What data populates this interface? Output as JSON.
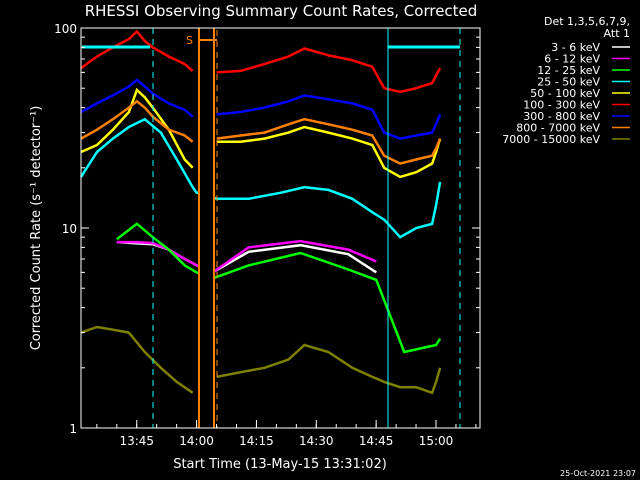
{
  "chart_data": {
    "type": "line",
    "title": "RHESSI Observing Summary Count Rates, Corrected",
    "xlabel": "Start Time (13-May-15 13:31:02)",
    "ylabel": "Corrected Count Rate (s⁻¹ detector⁻¹)",
    "yscale": "log",
    "ylim": [
      1,
      100
    ],
    "xlim_minutes": [
      0,
      100
    ],
    "x_ticks": [
      "13:45",
      "14:00",
      "14:15",
      "14:30",
      "14:45",
      "15:00"
    ],
    "x_tick_minutes": [
      13.97,
      28.97,
      43.97,
      58.97,
      73.97,
      88.97
    ],
    "y_tick_labels": [
      "1",
      "10",
      "100"
    ],
    "y_tick_values": [
      1,
      10,
      100
    ],
    "grid": false,
    "legend_header": [
      "Det 1,3,5,6,7,9,",
      "Att 1"
    ],
    "legend_position": "top-right",
    "series": [
      {
        "name": "3 - 6 keV",
        "color": "#ffffff",
        "x": [
          9,
          18,
          22,
          26,
          29,
          33,
          42,
          55,
          67,
          74,
          81,
          89,
          90
        ],
        "values": [
          8.5,
          8.3,
          7.8,
          7.0,
          6.5,
          6.0,
          7.6,
          8.2,
          7.4,
          6.0,
          null,
          null,
          null
        ]
      },
      {
        "name": "6 - 12 keV",
        "color": "#ff00ff",
        "x": [
          9,
          14,
          18,
          22,
          26,
          29,
          33,
          42,
          55,
          67,
          74,
          81,
          89,
          90
        ],
        "values": [
          8.5,
          8.5,
          8.4,
          7.8,
          7.0,
          6.5,
          6.0,
          8.0,
          8.6,
          7.8,
          6.8,
          null,
          null,
          null
        ]
      },
      {
        "name": "12 - 25 keV",
        "color": "#00ff00",
        "x": [
          9,
          14,
          18,
          22,
          26,
          29,
          33,
          42,
          55,
          67,
          74,
          81,
          89,
          90
        ],
        "values": [
          8.8,
          10.5,
          9.0,
          7.8,
          6.5,
          6.0,
          5.6,
          6.5,
          7.5,
          6.2,
          5.5,
          2.4,
          2.6,
          2.8
        ]
      },
      {
        "name": "25 - 50 keV",
        "color": "#00ffff",
        "x": [
          0,
          4,
          8,
          12,
          16,
          20,
          24,
          28,
          29,
          30,
          34,
          42,
          50,
          56,
          62,
          68,
          73,
          76,
          80,
          84,
          88,
          89,
          90
        ],
        "values": [
          18,
          24,
          28,
          32,
          35,
          30,
          22,
          16,
          15,
          15,
          14,
          14,
          15,
          16,
          15.5,
          14,
          12,
          11,
          9,
          10,
          10.5,
          13,
          17
        ]
      },
      {
        "name": "50 - 100 keV",
        "color": "#ffff00",
        "x": [
          0,
          4,
          8,
          12,
          14,
          16,
          18,
          22,
          26,
          28,
          29,
          30,
          34,
          40,
          46,
          52,
          56,
          62,
          68,
          73,
          76,
          80,
          84,
          88,
          89,
          90
        ],
        "values": [
          24,
          26,
          31,
          38,
          49,
          45,
          40,
          31,
          22,
          20,
          null,
          null,
          27,
          27,
          28,
          30,
          32,
          30,
          28,
          26,
          20,
          18,
          19,
          21,
          24,
          28
        ]
      },
      {
        "name": "100 - 300 keV",
        "color": "#ff0000",
        "x": [
          0,
          4,
          8,
          12,
          14,
          16,
          18,
          22,
          26,
          28,
          29,
          30,
          34,
          40,
          46,
          52,
          56,
          62,
          68,
          73,
          76,
          80,
          84,
          88,
          89,
          90
        ],
        "values": [
          63,
          72,
          80,
          88,
          96,
          86,
          80,
          72,
          66,
          61,
          null,
          null,
          60,
          61,
          66,
          72,
          79,
          73,
          69,
          64,
          50,
          48,
          50,
          53,
          58,
          63
        ]
      },
      {
        "name": "300 - 800 keV",
        "color": "#0000ff",
        "x": [
          0,
          4,
          8,
          12,
          14,
          16,
          18,
          22,
          26,
          28,
          29,
          30,
          34,
          40,
          46,
          52,
          56,
          62,
          68,
          73,
          76,
          80,
          84,
          88,
          89,
          90
        ],
        "values": [
          38,
          42,
          46,
          51,
          55,
          51,
          47,
          42,
          39,
          36,
          null,
          null,
          37,
          38,
          40,
          43,
          46,
          44,
          42,
          39,
          30,
          28,
          29,
          30,
          33,
          37
        ]
      },
      {
        "name": "800 - 7000 keV",
        "color": "#ff8000",
        "x": [
          0,
          4,
          8,
          12,
          14,
          16,
          18,
          22,
          26,
          28,
          29,
          30,
          34,
          40,
          46,
          52,
          56,
          62,
          68,
          73,
          76,
          80,
          84,
          88,
          89,
          90
        ],
        "values": [
          28,
          31,
          35,
          40,
          43,
          40,
          36,
          31,
          29,
          27,
          null,
          null,
          28,
          29,
          30,
          33,
          35,
          33,
          31,
          29,
          23,
          21,
          22,
          23,
          25,
          28
        ]
      },
      {
        "name": "7000 - 15000 keV",
        "color": "#808000",
        "x": [
          0,
          4,
          8,
          12,
          16,
          20,
          24,
          28,
          29,
          30,
          34,
          40,
          46,
          52,
          56,
          62,
          68,
          73,
          76,
          80,
          84,
          88,
          89,
          90
        ],
        "values": [
          3.0,
          3.2,
          3.1,
          3.0,
          2.4,
          2.0,
          1.7,
          1.5,
          null,
          null,
          1.8,
          1.9,
          2.0,
          2.2,
          2.6,
          2.4,
          2.0,
          1.8,
          1.7,
          1.6,
          1.6,
          1.5,
          1.7,
          2.0
        ]
      }
    ],
    "annotations": {
      "s_label": "S",
      "footer_date": "25-Oct-2021 23:07"
    }
  }
}
